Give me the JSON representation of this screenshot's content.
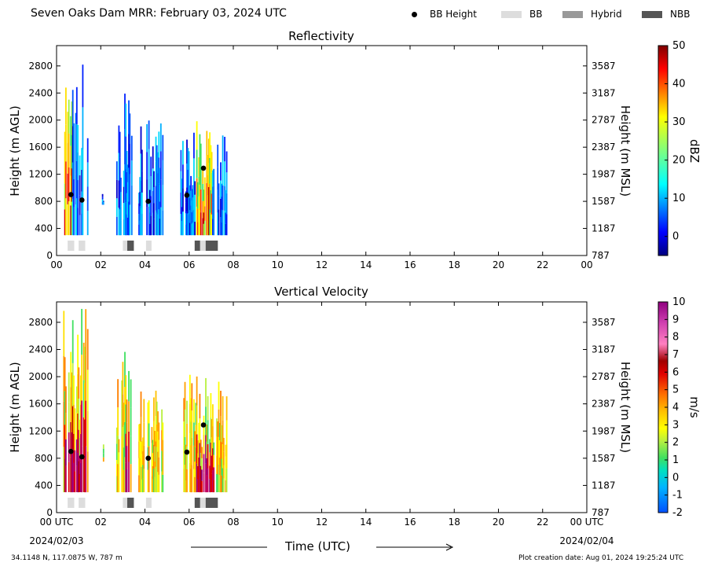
{
  "header": {
    "title": "Seven Oaks Dam MRR:  February 03, 2024 UTC",
    "legend": [
      {
        "label": "BB Height",
        "kind": "dot",
        "color": "#000000"
      },
      {
        "label": "BB",
        "kind": "swatch",
        "color": "#dddddd"
      },
      {
        "label": "Hybrid",
        "kind": "swatch",
        "color": "#999999"
      },
      {
        "label": "NBB",
        "kind": "swatch",
        "color": "#555555"
      }
    ]
  },
  "footer": {
    "location": "34.1148 N, 117.0875 W, 787 m",
    "creation": "Plot creation date: Aug 01, 2024 19:25:24 UTC",
    "xlabel": "Time (UTC)",
    "date_start": "2024/02/03",
    "date_end": "2024/02/04"
  },
  "chart_data": [
    {
      "type": "heatmap",
      "title": "Reflectivity",
      "ylabel": "Height (m AGL)",
      "ylabel_right": "Height (m MSL)",
      "colorbar_label": "dBZ",
      "colorbar_ticks": [
        "50",
        "40",
        "30",
        "20",
        "10",
        "0"
      ],
      "colorbar_range": [
        -5,
        50
      ],
      "x_ticks": [
        "00",
        "02",
        "04",
        "06",
        "08",
        "10",
        "12",
        "14",
        "16",
        "18",
        "20",
        "22",
        "00"
      ],
      "y_ticks": [
        "0",
        "400",
        "800",
        "1200",
        "1600",
        "2000",
        "2400",
        "2800"
      ],
      "y_ticks_right": [
        "787",
        "1187",
        "1587",
        "1987",
        "2387",
        "2787",
        "3187",
        "3587"
      ],
      "xlim": [
        0,
        24
      ],
      "ylim": [
        0,
        3100
      ],
      "bb_height": [
        {
          "hour": 0.65,
          "height": 900
        },
        {
          "hour": 1.15,
          "height": 820
        },
        {
          "hour": 4.15,
          "height": 800
        },
        {
          "hour": 5.9,
          "height": 890
        },
        {
          "hour": 6.65,
          "height": 1290
        }
      ],
      "bb_type": [
        {
          "start": 0.5,
          "end": 0.8,
          "type": "BB"
        },
        {
          "start": 1.0,
          "end": 1.3,
          "type": "BB"
        },
        {
          "start": 3.0,
          "end": 3.2,
          "type": "BB"
        },
        {
          "start": 3.2,
          "end": 3.5,
          "type": "NBB"
        },
        {
          "start": 4.05,
          "end": 4.3,
          "type": "BB"
        },
        {
          "start": 6.25,
          "end": 6.5,
          "type": "NBB"
        },
        {
          "start": 6.5,
          "end": 6.75,
          "type": "BB"
        },
        {
          "start": 6.75,
          "end": 7.3,
          "type": "NBB"
        }
      ]
    },
    {
      "type": "heatmap",
      "title": "Vertical Velocity",
      "ylabel": "Height (m AGL)",
      "ylabel_right": "Height (m MSL)",
      "colorbar_label": "m/s",
      "colorbar_ticks": [
        "10",
        "9",
        "8",
        "7",
        "6",
        "5",
        "4",
        "3",
        "2",
        "1",
        "0",
        "-1",
        "-2"
      ],
      "colorbar_range": [
        -2,
        10
      ],
      "x_ticks": [
        "00 UTC",
        "02",
        "04",
        "06",
        "08",
        "10",
        "12",
        "14",
        "16",
        "18",
        "20",
        "22",
        "00 UTC"
      ],
      "y_ticks": [
        "0",
        "400",
        "800",
        "1200",
        "1600",
        "2000",
        "2400",
        "2800"
      ],
      "y_ticks_right": [
        "787",
        "1187",
        "1587",
        "1987",
        "2387",
        "2787",
        "3187",
        "3587"
      ],
      "xlim": [
        0,
        24
      ],
      "ylim": [
        0,
        3100
      ],
      "bb_height": [
        {
          "hour": 0.65,
          "height": 900
        },
        {
          "hour": 1.15,
          "height": 820
        },
        {
          "hour": 4.15,
          "height": 800
        },
        {
          "hour": 5.9,
          "height": 890
        },
        {
          "hour": 6.65,
          "height": 1290
        }
      ],
      "bb_type": [
        {
          "start": 0.5,
          "end": 0.8,
          "type": "BB"
        },
        {
          "start": 1.0,
          "end": 1.3,
          "type": "BB"
        },
        {
          "start": 3.0,
          "end": 3.2,
          "type": "BB"
        },
        {
          "start": 3.2,
          "end": 3.5,
          "type": "NBB"
        },
        {
          "start": 4.05,
          "end": 4.3,
          "type": "BB"
        },
        {
          "start": 6.25,
          "end": 6.5,
          "type": "NBB"
        },
        {
          "start": 6.5,
          "end": 6.75,
          "type": "BB"
        },
        {
          "start": 6.75,
          "end": 7.3,
          "type": "NBB"
        }
      ]
    }
  ]
}
